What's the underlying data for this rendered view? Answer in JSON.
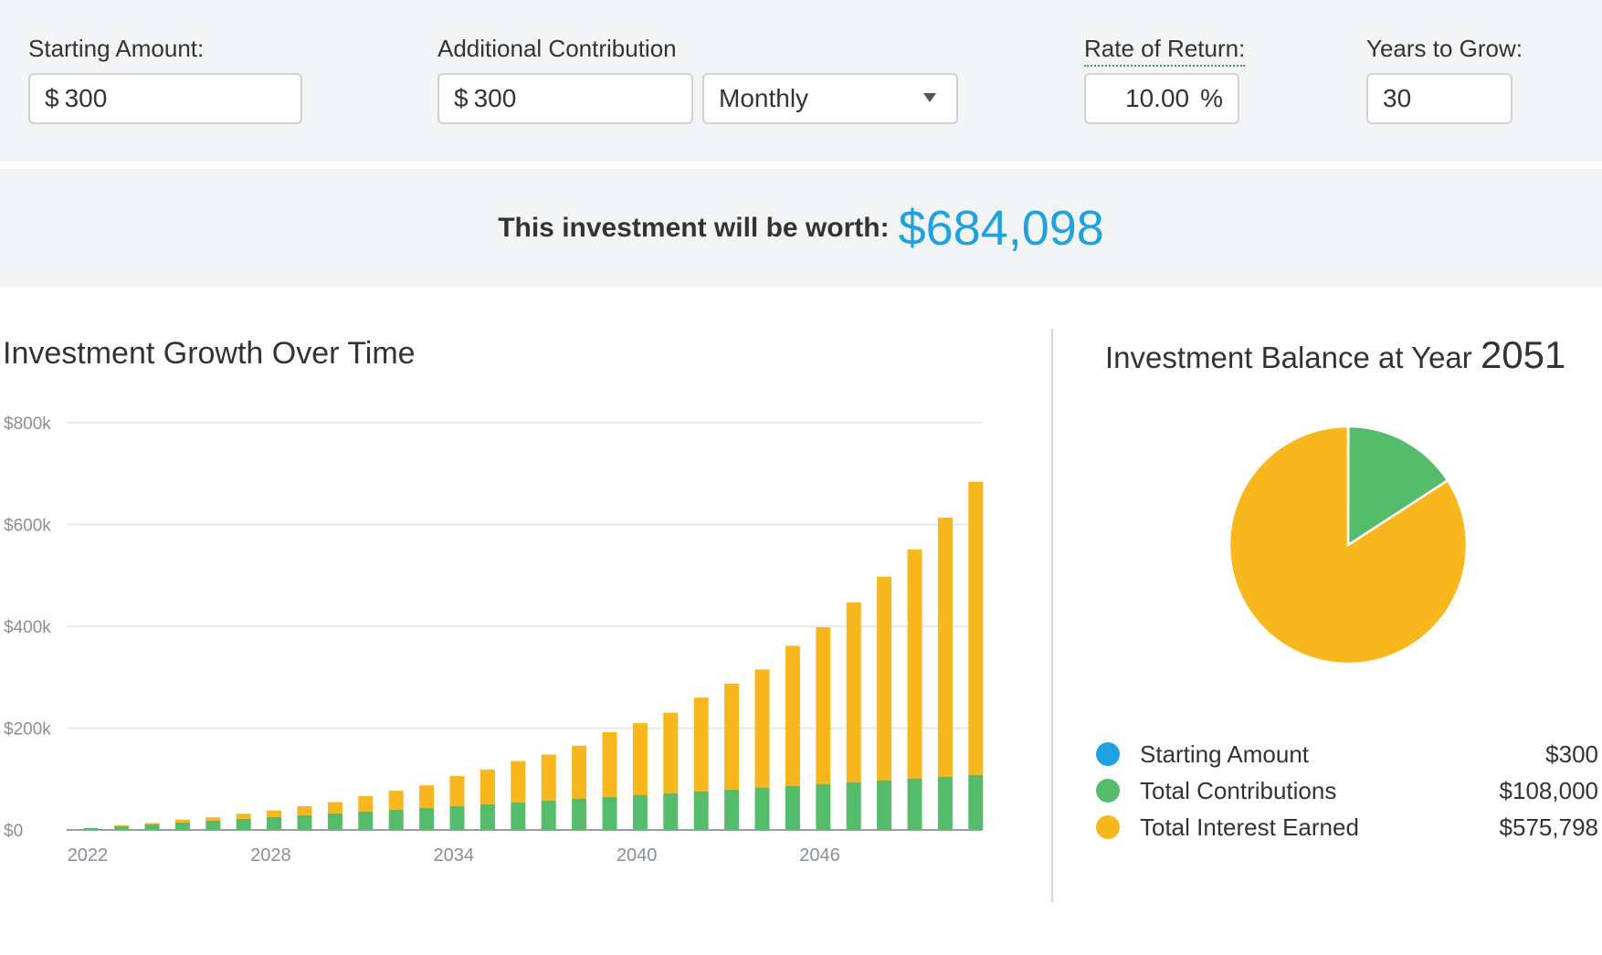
{
  "inputs": {
    "starting_amount": {
      "label": "Starting Amount:",
      "prefix": "$",
      "value": "300"
    },
    "additional_contribution": {
      "label": "Additional Contribution",
      "prefix": "$",
      "value": "300"
    },
    "frequency": {
      "value": "Monthly"
    },
    "rate_of_return": {
      "label": "Rate of Return:",
      "value": "10.00",
      "suffix": "%"
    },
    "years_to_grow": {
      "label": "Years to Grow:",
      "value": "30"
    }
  },
  "result": {
    "label": "This investment will be worth:",
    "value": "$684,098"
  },
  "growth_chart": {
    "title": "Investment Growth Over Time"
  },
  "balance": {
    "title": "Investment Balance at Year",
    "year": "2051",
    "legend": [
      {
        "name": "Starting Amount",
        "value": "$300",
        "color": "#1fa3e0"
      },
      {
        "name": "Total Contributions",
        "value": "$108,000",
        "color": "#55bc6b"
      },
      {
        "name": "Total Interest Earned",
        "value": "$575,798",
        "color": "#f8b71d"
      }
    ]
  },
  "colors": {
    "contributions": "#55bc6b",
    "interest": "#f8b71d",
    "starting": "#1fa3e0",
    "accent": "#1fa3e0"
  },
  "chart_data": [
    {
      "type": "bar",
      "stacked": true,
      "title": "Investment Growth Over Time",
      "xlabel": "",
      "ylabel": "",
      "x": [
        2022,
        2023,
        2024,
        2025,
        2026,
        2027,
        2028,
        2029,
        2030,
        2031,
        2032,
        2033,
        2034,
        2035,
        2036,
        2037,
        2038,
        2039,
        2040,
        2041,
        2042,
        2043,
        2044,
        2045,
        2046,
        2047,
        2048,
        2049,
        2050,
        2051
      ],
      "x_tick_labels": [
        "2022",
        "2028",
        "2034",
        "2040",
        "2046"
      ],
      "y_tick_labels": [
        "$0",
        "$200k",
        "$400k",
        "$600k",
        "$800k"
      ],
      "ylim": [
        0,
        800000
      ],
      "grid": true,
      "series": [
        {
          "name": "Total Contributions",
          "color": "#55bc6b",
          "values": [
            3900,
            7500,
            11100,
            14700,
            18300,
            21900,
            25500,
            29100,
            32700,
            36300,
            39900,
            43500,
            47100,
            50700,
            54300,
            57900,
            61500,
            65100,
            68700,
            72300,
            75900,
            79500,
            83100,
            86700,
            90300,
            93900,
            97500,
            101100,
            104700,
            108300
          ]
        },
        {
          "name": "Total Interest Earned",
          "color": "#f8b71d",
          "values": [
            0,
            2000,
            2500,
            5500,
            6500,
            10000,
            12500,
            17500,
            22000,
            30000,
            37000,
            44000,
            59000,
            68000,
            81000,
            90000,
            104000,
            127000,
            141000,
            158000,
            184000,
            208000,
            232000,
            275000,
            308000,
            353000,
            400000,
            450000,
            509000,
            575798
          ]
        }
      ]
    },
    {
      "type": "pie",
      "title": "Investment Balance at Year 2051",
      "categories": [
        "Starting Amount",
        "Total Contributions",
        "Total Interest Earned"
      ],
      "values": [
        300,
        108000,
        575798
      ],
      "colors": [
        "#1fa3e0",
        "#55bc6b",
        "#f8b71d"
      ]
    }
  ]
}
